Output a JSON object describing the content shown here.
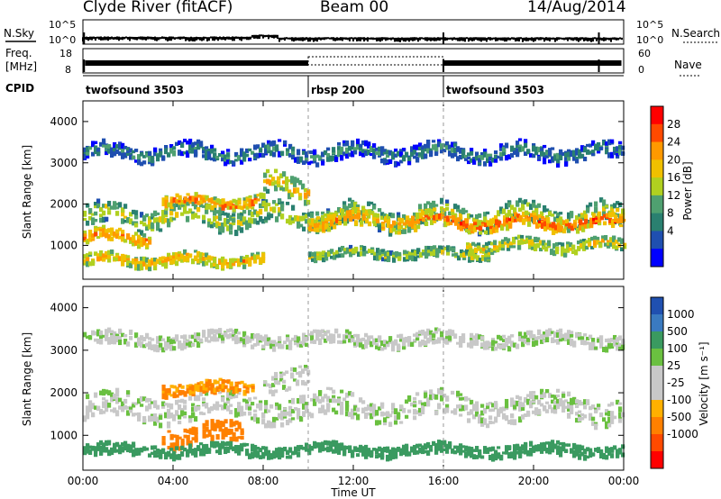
{
  "header": {
    "station": "Clyde River (fitACF)",
    "beam": "Beam 00",
    "date": "14/Aug/2014"
  },
  "nsky_panel": {
    "left_label": "N.Sky",
    "right_label": "N.Search",
    "tick_top": "10^5",
    "tick_bottom": "10^0"
  },
  "freq_panel": {
    "left_label_line1": "Freq.",
    "left_label_line2": "[MHz]",
    "left_tick_top": "18",
    "left_tick_bottom": "8",
    "right_tick_top": "60",
    "right_tick_bottom": "0",
    "right_label": "Nave"
  },
  "cpid": {
    "label": "CPID",
    "segments": [
      {
        "start_hour": 0,
        "text": "twofsound 3503"
      },
      {
        "start_hour": 10,
        "text": "rbsp 200"
      },
      {
        "start_hour": 16,
        "text": "twofsound 3503"
      }
    ]
  },
  "power_scale": {
    "label": "Power [dB]",
    "ticks": [
      "28",
      "24",
      "20",
      "16",
      "12",
      "8",
      "4"
    ],
    "colors": [
      "#ff0000",
      "#ff4a00",
      "#ff9900",
      "#f0c000",
      "#b0d020",
      "#4fa070",
      "#2a8070",
      "#1f4fb0",
      "#0000ff"
    ]
  },
  "velocity_scale": {
    "label": "Velocity [m s⁻¹]",
    "ticks": [
      "1000",
      "500",
      "100",
      "25",
      "-25",
      "-100",
      "-500",
      "-1000"
    ],
    "colors": [
      "#2050b0",
      "#3a7ac0",
      "#3a9a60",
      "#6ac040",
      "#c8c8c8",
      "#c8c8c8",
      "#ffb000",
      "#ff8000",
      "#ff4a00",
      "#ff0000"
    ]
  },
  "axes": {
    "ylabel": "Slant Range [km]",
    "xlabel": "Time UT",
    "yticks": [
      "4000",
      "3000",
      "2000",
      "1000"
    ],
    "xticks": [
      "00:00",
      "04:00",
      "08:00",
      "12:00",
      "16:00",
      "20:00",
      "00:00"
    ]
  },
  "chart_data": {
    "type": "heatmap",
    "x_range_hours": [
      0,
      24
    ],
    "y_range_km": [
      180,
      4500
    ],
    "mode_change_hours": [
      10,
      16
    ],
    "power_bands": [
      {
        "t0": 0,
        "t1": 24,
        "r_center": 1750,
        "r_width": 500,
        "dB": 12
      },
      {
        "t0": 3.5,
        "t1": 8,
        "r_center": 2100,
        "r_width": 250,
        "dB": 18
      },
      {
        "t0": 0,
        "t1": 3,
        "r_center": 1250,
        "r_width": 300,
        "dB": 18
      },
      {
        "t0": 0,
        "t1": 8,
        "r_center": 700,
        "r_width": 250,
        "dB": 16
      },
      {
        "t0": 8,
        "t1": 10,
        "r_center": 2450,
        "r_width": 500,
        "dB": 14
      },
      {
        "t0": 10,
        "t1": 16,
        "r_center": 1650,
        "r_width": 350,
        "dB": 18
      },
      {
        "t0": 10,
        "t1": 18,
        "r_center": 850,
        "r_width": 200,
        "dB": 12
      },
      {
        "t0": 16,
        "t1": 24,
        "r_center": 1600,
        "r_width": 300,
        "dB": 20
      },
      {
        "t0": 17,
        "t1": 24,
        "r_center": 1050,
        "r_width": 250,
        "dB": 14
      },
      {
        "t0": 0,
        "t1": 24,
        "r_center": 3300,
        "r_width": 350,
        "dB": 6
      }
    ],
    "velocity_bands": [
      {
        "t0": 0,
        "t1": 24,
        "r_center": 1700,
        "r_width": 550,
        "v": 0
      },
      {
        "t0": 3.5,
        "t1": 7.5,
        "r_center": 2150,
        "r_width": 250,
        "v": -300
      },
      {
        "t0": 3.5,
        "t1": 7,
        "r_center": 1050,
        "r_width": 450,
        "v": -600
      },
      {
        "t0": 0,
        "t1": 24,
        "r_center": 700,
        "r_width": 250,
        "v": 200
      },
      {
        "t0": 8,
        "t1": 10,
        "r_center": 2450,
        "r_width": 500,
        "v": 0
      },
      {
        "t0": 0,
        "t1": 24,
        "r_center": 3300,
        "r_width": 300,
        "v": 0
      }
    ]
  }
}
